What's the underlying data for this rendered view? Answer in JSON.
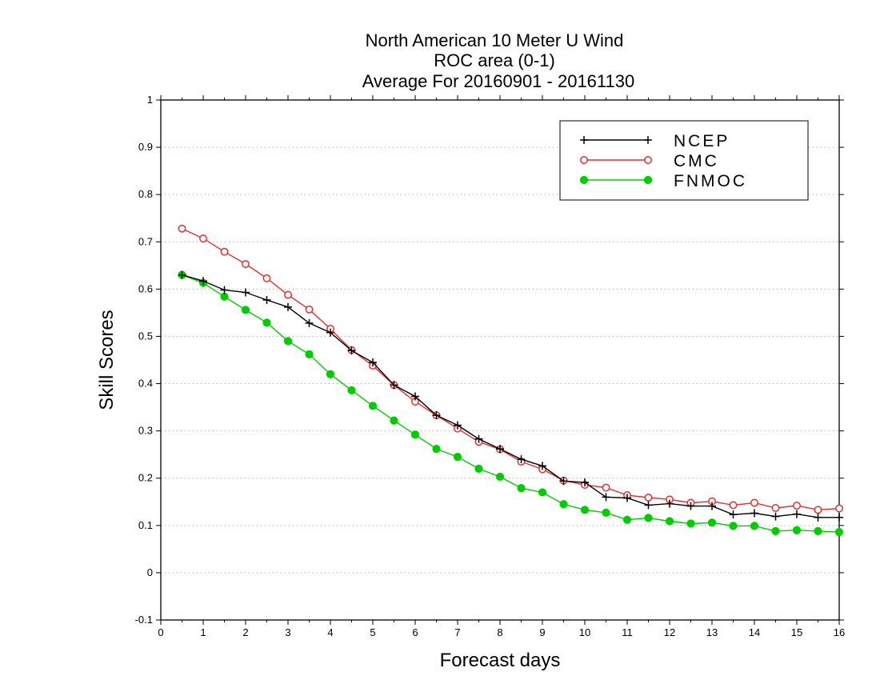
{
  "chart_data": {
    "type": "line",
    "title": [
      "North American 10 Meter U Wind",
      "ROC area (0-1)",
      "Average For 20160901 - 20161130"
    ],
    "xlabel": "Forecast days",
    "ylabel": "Skill Scores",
    "xlim": [
      0,
      16
    ],
    "ylim": [
      -0.1,
      1
    ],
    "xticks": [
      "0",
      "1",
      "2",
      "3",
      "4",
      "5",
      "6",
      "7",
      "8",
      "9",
      "10",
      "11",
      "12",
      "13",
      "14",
      "15",
      "16"
    ],
    "yticks": [
      "-0.1",
      "0",
      "0.1",
      "0.2",
      "0.3",
      "0.4",
      "0.5",
      "0.6",
      "0.7",
      "0.8",
      "0.9",
      "1"
    ],
    "grid": "horizontal-dotted",
    "legend_position": "top-right",
    "x": [
      0.5,
      1,
      1.5,
      2,
      2.5,
      3,
      3.5,
      4,
      4.5,
      5,
      5.5,
      6,
      6.5,
      7,
      7.5,
      8,
      8.5,
      9,
      9.5,
      10,
      10.5,
      11,
      11.5,
      12,
      12.5,
      13,
      13.5,
      14,
      14.5,
      15,
      15.5,
      16
    ],
    "series": [
      {
        "name": "NCEP",
        "color": "#000000",
        "marker": "plus",
        "values": [
          0.63,
          0.617,
          0.598,
          0.593,
          0.577,
          0.562,
          0.528,
          0.508,
          0.47,
          0.445,
          0.397,
          0.373,
          0.333,
          0.312,
          0.283,
          0.262,
          0.24,
          0.226,
          0.194,
          0.191,
          0.16,
          0.158,
          0.143,
          0.146,
          0.141,
          0.141,
          0.123,
          0.126,
          0.119,
          0.124,
          0.117,
          0.117
        ]
      },
      {
        "name": "CMC",
        "color": "#e03030",
        "marker": "open-circle",
        "values": [
          0.728,
          0.707,
          0.679,
          0.653,
          0.623,
          0.588,
          0.557,
          0.516,
          0.471,
          0.438,
          0.397,
          0.362,
          0.333,
          0.305,
          0.277,
          0.261,
          0.235,
          0.219,
          0.195,
          0.186,
          0.18,
          0.164,
          0.159,
          0.155,
          0.148,
          0.151,
          0.143,
          0.148,
          0.137,
          0.142,
          0.133,
          0.136
        ]
      },
      {
        "name": "FNMOC",
        "color": "#00cc00",
        "marker": "filled-circle",
        "values": [
          0.63,
          0.613,
          0.584,
          0.556,
          0.529,
          0.49,
          0.462,
          0.42,
          0.386,
          0.353,
          0.322,
          0.292,
          0.262,
          0.245,
          0.22,
          0.203,
          0.179,
          0.17,
          0.145,
          0.133,
          0.127,
          0.112,
          0.116,
          0.109,
          0.104,
          0.106,
          0.099,
          0.099,
          0.088,
          0.09,
          0.088,
          0.086
        ]
      }
    ]
  }
}
